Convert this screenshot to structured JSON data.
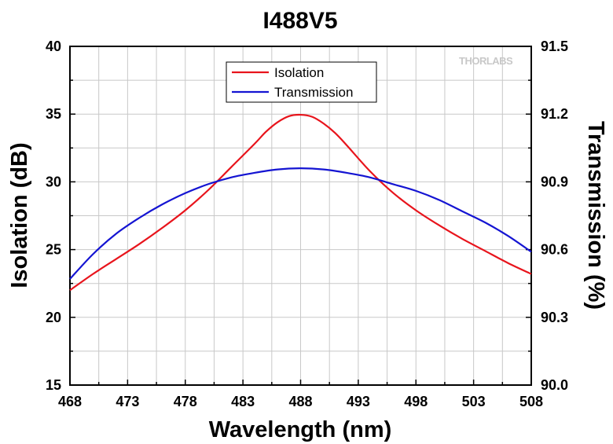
{
  "chart_data": {
    "type": "line",
    "title": "I488V5",
    "xlabel": "Wavelength (nm)",
    "ylabel": "Isolation (dB)",
    "y2label": "Transmission (%)",
    "xlim": [
      468,
      508
    ],
    "ylim": [
      15,
      40
    ],
    "y2lim": [
      90.0,
      91.5
    ],
    "xticks": [
      "468",
      "473",
      "478",
      "483",
      "488",
      "493",
      "498",
      "503",
      "508"
    ],
    "yticks": [
      "15",
      "20",
      "25",
      "30",
      "35",
      "40"
    ],
    "y2ticks": [
      "90.0",
      "90.3",
      "90.6",
      "90.9",
      "91.2",
      "91.5"
    ],
    "grid": true,
    "legend_position": "top-center",
    "series": [
      {
        "name": "Isolation",
        "axis": "left",
        "color": "#e8141c",
        "x": [
          468,
          470,
          472,
          474,
          476,
          478,
          480,
          482,
          484,
          485,
          486,
          487,
          488,
          489,
          490,
          491,
          492,
          494,
          496,
          498,
          500,
          502,
          504,
          506,
          508
        ],
        "y": [
          22.0,
          23.2,
          24.3,
          25.4,
          26.6,
          27.9,
          29.4,
          31.1,
          32.8,
          33.7,
          34.4,
          34.85,
          34.95,
          34.8,
          34.3,
          33.6,
          32.7,
          30.8,
          29.2,
          27.9,
          26.8,
          25.8,
          24.9,
          24.0,
          23.2
        ]
      },
      {
        "name": "Transmission",
        "axis": "right",
        "color": "#1414d2",
        "x": [
          468,
          470,
          472,
          474,
          476,
          478,
          480,
          482,
          484,
          486,
          488,
          490,
          492,
          494,
          496,
          498,
          500,
          502,
          504,
          506,
          508
        ],
        "y": [
          90.47,
          90.58,
          90.67,
          90.74,
          90.8,
          90.85,
          90.89,
          90.92,
          90.94,
          90.955,
          90.96,
          90.955,
          90.94,
          90.92,
          90.89,
          90.86,
          90.82,
          90.77,
          90.72,
          90.66,
          90.59
        ]
      }
    ]
  },
  "watermark": "THORLABS"
}
